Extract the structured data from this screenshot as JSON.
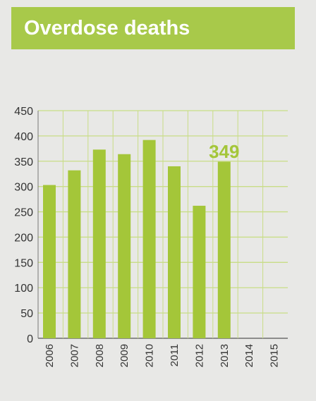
{
  "title": "Overdose deaths",
  "colors": {
    "bar": "#a4c639",
    "title_bg": "#a8c94a",
    "grid": "#c8dd86",
    "axis_text": "#333333",
    "highlight_label": "#a4c639"
  },
  "chart_data": {
    "type": "bar",
    "title": "Overdose deaths",
    "xlabel": "",
    "ylabel": "",
    "categories": [
      "2006",
      "2007",
      "2008",
      "2009",
      "2010",
      "2011",
      "2012",
      "2013",
      "2014",
      "2015"
    ],
    "values": [
      303,
      332,
      373,
      364,
      392,
      340,
      262,
      349,
      null,
      null
    ],
    "ylim": [
      0,
      450
    ],
    "yticks": [
      0,
      50,
      100,
      150,
      200,
      250,
      300,
      350,
      400,
      450
    ],
    "grid": true,
    "annotation": {
      "category": "2013",
      "text": "349"
    }
  }
}
